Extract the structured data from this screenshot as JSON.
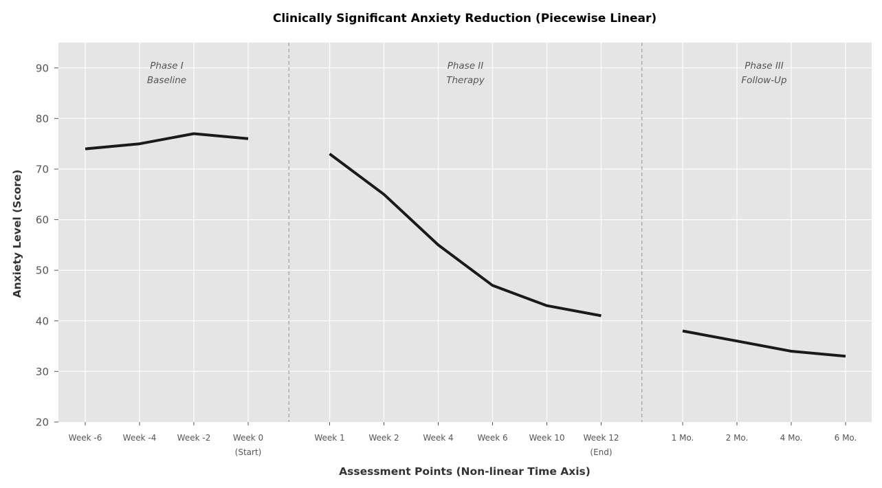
{
  "chart_data": {
    "type": "line",
    "title": "Clinically Significant Anxiety Reduction (Piecewise Linear)",
    "xlabel": "Assessment Points (Non-linear Time Axis)",
    "ylabel": "Anxiety Level (Score)",
    "ylim": [
      20,
      95
    ],
    "yticks": [
      20,
      30,
      40,
      50,
      60,
      70,
      80,
      90
    ],
    "grid": true,
    "colors": {
      "background": "#e5e5e5",
      "grid": "#ffffff",
      "line": "#1a1a1a",
      "divider": "#a8a8a8"
    },
    "categories": [
      [
        "Week -6"
      ],
      [
        "Week -4"
      ],
      [
        "Week -2"
      ],
      [
        "Week 0",
        "(Start)"
      ],
      [
        "Week 1"
      ],
      [
        "Week 2"
      ],
      [
        "Week 4"
      ],
      [
        "Week 6"
      ],
      [
        "Week 10"
      ],
      [
        "Week 12",
        "(End)"
      ],
      [
        "1 Mo."
      ],
      [
        "2 Mo."
      ],
      [
        "4 Mo."
      ],
      [
        "6 Mo."
      ]
    ],
    "phases": [
      {
        "name": "Phase I",
        "subtitle": "Baseline",
        "categories": [
          "Week -6",
          "Week -4",
          "Week -2",
          "Week 0"
        ],
        "values": [
          74,
          75,
          77,
          76
        ]
      },
      {
        "name": "Phase II",
        "subtitle": "Therapy",
        "categories": [
          "Week 1",
          "Week 2",
          "Week 4",
          "Week 6",
          "Week 10",
          "Week 12"
        ],
        "values": [
          73,
          65,
          55,
          47,
          43,
          41
        ]
      },
      {
        "name": "Phase III",
        "subtitle": "Follow-Up",
        "categories": [
          "1 Mo.",
          "2 Mo.",
          "4 Mo.",
          "6 Mo."
        ],
        "values": [
          38,
          36,
          34,
          33
        ]
      }
    ]
  }
}
